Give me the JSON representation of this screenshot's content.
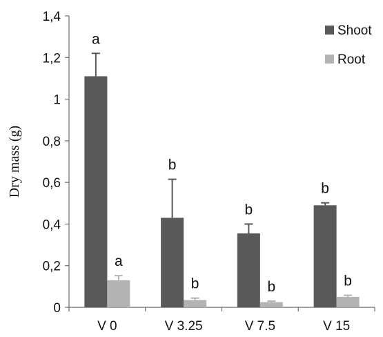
{
  "chart_data": {
    "type": "bar",
    "title": "",
    "xlabel": "",
    "ylabel": "Dry mass (g)",
    "ylim": [
      0,
      1.4
    ],
    "yticks": [
      "0",
      "0,2",
      "0,4",
      "0,6",
      "0,8",
      "1",
      "1,2",
      "1,4"
    ],
    "categories": [
      "V 0",
      "V 3.25",
      "V 7.5",
      "V 15"
    ],
    "series": [
      {
        "name": "Shoot",
        "color": "#595959",
        "values": [
          1.11,
          0.43,
          0.355,
          0.49
        ],
        "errors": [
          0.11,
          0.185,
          0.045,
          0.012
        ],
        "labels": [
          "a",
          "b",
          "b",
          "b"
        ]
      },
      {
        "name": "Root",
        "color": "#b3b3b3",
        "values": [
          0.13,
          0.035,
          0.025,
          0.05
        ],
        "errors": [
          0.022,
          0.009,
          0.005,
          0.008
        ],
        "labels": [
          "a",
          "b",
          "b",
          "b"
        ]
      }
    ],
    "legend_position": "top-right",
    "grid": false
  }
}
